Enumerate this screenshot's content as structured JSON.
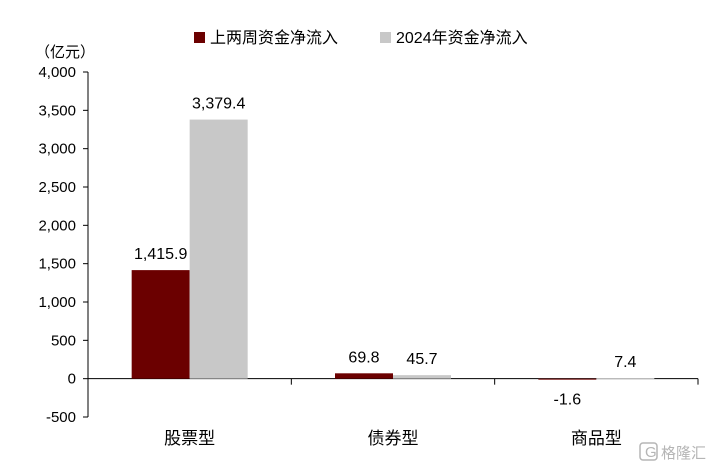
{
  "chart_data": {
    "type": "bar",
    "unit_label": "（亿元）",
    "categories": [
      "股票型",
      "债券型",
      "商品型"
    ],
    "series": [
      {
        "name": "上两周资金净流入",
        "color": "#6b0000",
        "values": [
          1415.9,
          69.8,
          -1.6
        ],
        "labels": [
          "1,415.9",
          "69.8",
          "-1.6"
        ]
      },
      {
        "name": "2024年资金净流入",
        "color": "#c8c8c8",
        "values": [
          3379.4,
          45.7,
          7.4
        ],
        "labels": [
          "3,379.4",
          "45.7",
          "7.4"
        ]
      }
    ],
    "ylim": [
      -500,
      4000
    ],
    "yticks": [
      -500,
      0,
      500,
      1000,
      1500,
      2000,
      2500,
      3000,
      3500,
      4000
    ],
    "ytick_labels": [
      "-500",
      "0",
      "500",
      "1,000",
      "1,500",
      "2,000",
      "2,500",
      "3,000",
      "3,500",
      "4,000"
    ],
    "legend_position": "top",
    "grid": false
  },
  "watermark": "格隆汇"
}
